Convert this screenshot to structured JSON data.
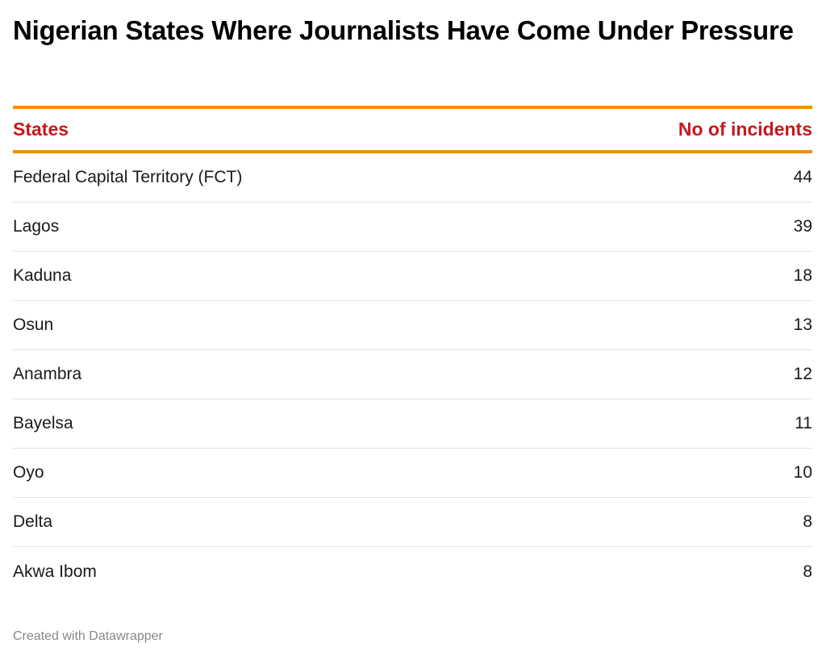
{
  "title": "Nigerian States Where Journalists Have Come Under Pressure",
  "colors": {
    "accent_rule": "#f28e0a",
    "header_text": "#c8171e",
    "footer_text": "#888888"
  },
  "chart_data": {
    "type": "table",
    "title": "Nigerian States Where Journalists Have Come Under Pressure",
    "columns": [
      "States",
      "No of incidents"
    ],
    "rows": [
      {
        "state": "Federal Capital Territory (FCT)",
        "incidents": 44
      },
      {
        "state": "Lagos",
        "incidents": 39
      },
      {
        "state": "Kaduna",
        "incidents": 18
      },
      {
        "state": "Osun",
        "incidents": 13
      },
      {
        "state": "Anambra",
        "incidents": 12
      },
      {
        "state": "Bayelsa",
        "incidents": 11
      },
      {
        "state": "Oyo",
        "incidents": 10
      },
      {
        "state": "Delta",
        "incidents": 8
      },
      {
        "state": "Akwa Ibom",
        "incidents": 8
      }
    ]
  },
  "footer": "Created with Datawrapper"
}
